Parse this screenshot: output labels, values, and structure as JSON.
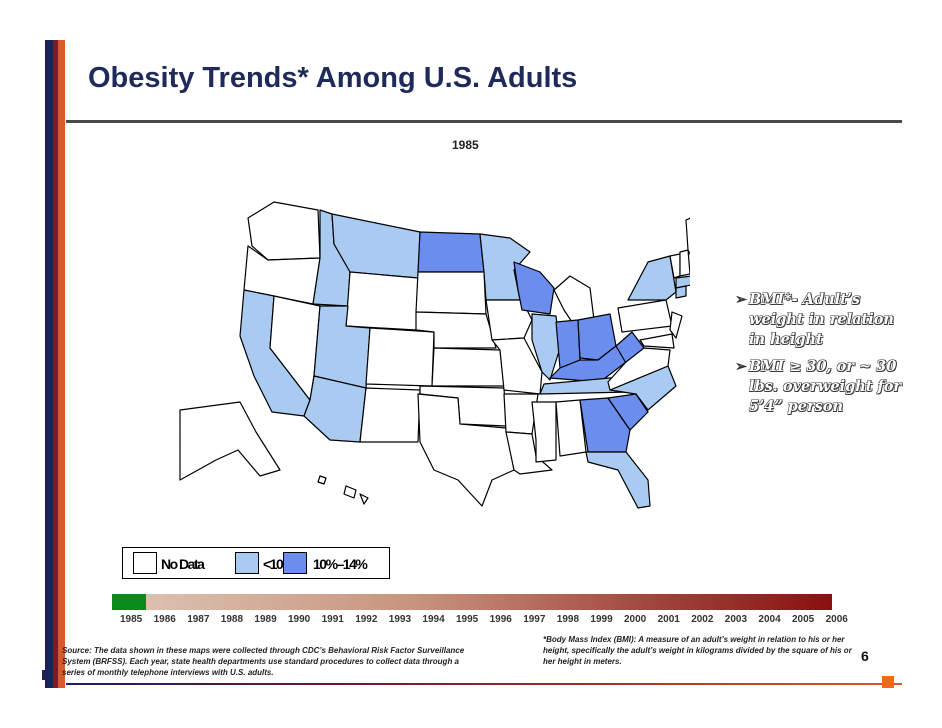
{
  "title": "Obesity Trends* Among U.S. Adults",
  "year": "1985",
  "colors": {
    "no_data": "#ffffff",
    "lt10": "#a9cbf2",
    "p10_14": "#6b8ded",
    "navy": "#1e2a5a"
  },
  "bullets": [
    {
      "text": "BMI*- Adult’s weight in relation in height"
    },
    {
      "text": "BMI ≥ 30, or ~ 30 lbs. overweight for 5’4” person"
    }
  ],
  "legend": [
    {
      "label": "No Data",
      "color": "#ffffff"
    },
    {
      "label": "<10%",
      "color": "#a9cbf2"
    },
    {
      "label": "10%–14%",
      "color": "#6b8ded"
    }
  ],
  "timeline_years": [
    "1985",
    "1986",
    "1987",
    "1988",
    "1989",
    "1990",
    "1991",
    "1992",
    "1993",
    "1994",
    "1995",
    "1996",
    "1997",
    "1998",
    "1999",
    "2000",
    "2001",
    "2002",
    "2003",
    "2004",
    "2005",
    "2006"
  ],
  "source_note": "Source: The data shown in these maps were collected through CDC’s Behavioral Risk Factor Surveillance System (BRFSS). Each year, state health departments use standard procedures to collect data through a series of monthly telephone interviews with U.S. adults.",
  "bmi_note": "*Body Mass Index (BMI): A measure of an adult’s weight in relation to his or her height, specifically the adult’s weight in kilograms divided by the square of his or her height in meters.",
  "page_number": "6"
}
